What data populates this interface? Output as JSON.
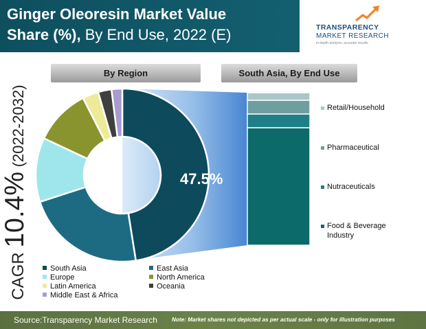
{
  "title": {
    "line1": "Ginger Oleoresin Market Value",
    "line2_bold": "Share (%),",
    "line2_regular": " By End Use, 2022 (E)"
  },
  "logo": {
    "name_line1": "TRANSPARENCY",
    "name_line2": "MARKET RESEARCH",
    "tagline": "in-depth analysis, accurate results"
  },
  "banners": {
    "region": "By Region",
    "south_asia": "South Asia, By End Use"
  },
  "cagr": {
    "label": "CAGR",
    "value": "10.4%",
    "period": "(2022-2032)"
  },
  "footer": {
    "source": "Source:Transparency Market Research",
    "note": "Note: Market shares not depicted as per actual scale - only for illustration purposes"
  },
  "colors": {
    "south_asia": "#0d4a5c",
    "east_asia": "#1d6b82",
    "europe": "#9ee6ec",
    "north_america": "#8a942e",
    "latin_america": "#edeb9a",
    "oceania": "#3f3f3f",
    "middle_east_africa": "#a79bd0"
  },
  "chart_data": [
    {
      "type": "pie",
      "title": "By Region",
      "center_label": "47.5%",
      "slices": [
        {
          "label": "South Asia",
          "value": 47.5,
          "color": "#0d4a5c"
        },
        {
          "label": "East Asia",
          "value": 22.5,
          "color": "#1d6b82"
        },
        {
          "label": "Europe",
          "value": 12.0,
          "color": "#9ee6ec"
        },
        {
          "label": "North America",
          "value": 10.5,
          "color": "#8a942e"
        },
        {
          "label": "Latin America",
          "value": 3.0,
          "color": "#edeb9a"
        },
        {
          "label": "Oceania",
          "value": 2.5,
          "color": "#3f3f3f"
        },
        {
          "label": "Middle East & Africa",
          "value": 2.0,
          "color": "#a79bd0"
        }
      ]
    },
    {
      "type": "bar",
      "title": "South Asia, By End Use",
      "stacked": true,
      "categories": [
        "Retail/Household",
        "Pharmaceutical",
        "Nutraceuticals",
        "Food & Beverage Industry"
      ],
      "values": [
        5,
        9,
        9,
        77
      ],
      "colors": [
        "#a9c7c9",
        "#6f9ea0",
        "#1f7f86",
        "#0d6a6a"
      ]
    }
  ]
}
